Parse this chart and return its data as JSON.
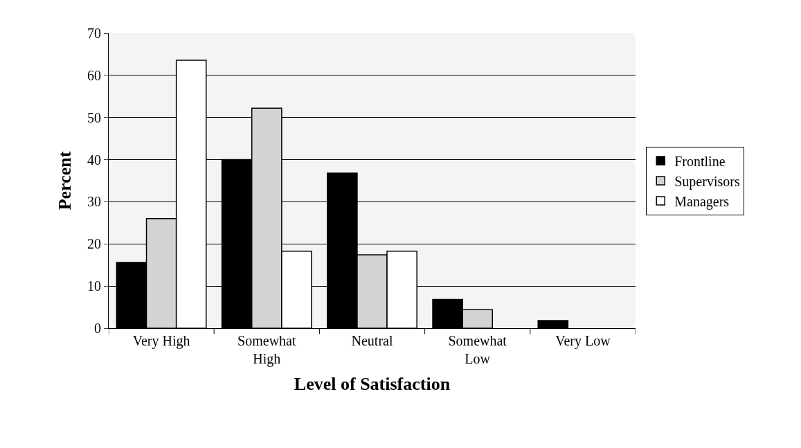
{
  "chart_data": {
    "type": "bar",
    "xlabel": "Level of Satisfaction",
    "ylabel": "Percent",
    "categories": [
      "Very High",
      "Somewhat High",
      "Neutral",
      "Somewhat Low",
      "Very Low"
    ],
    "series": [
      {
        "name": "Frontline",
        "color": "#000000",
        "values": [
          15.6,
          40,
          36.8,
          6.8,
          1.8
        ]
      },
      {
        "name": "Supervisors",
        "color": "#d4d4d4",
        "values": [
          26,
          52.2,
          17.4,
          4.4,
          0
        ]
      },
      {
        "name": "Managers",
        "color": "#ffffff",
        "values": [
          63.6,
          18.3,
          18.3,
          0,
          0
        ]
      }
    ],
    "ylim": [
      0,
      70
    ],
    "yticks": [
      0,
      10,
      20,
      30,
      40,
      50,
      60,
      70
    ],
    "grid": "y",
    "legend": "right"
  }
}
